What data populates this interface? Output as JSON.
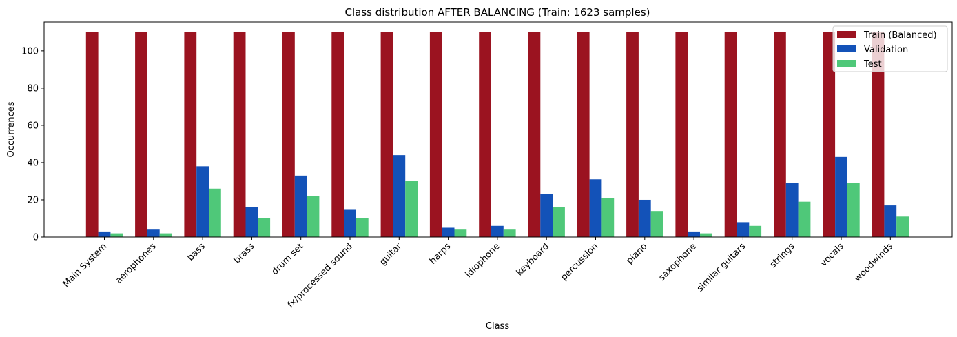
{
  "chart_data": {
    "type": "bar",
    "title": "Class distribution AFTER BALANCING (Train: 1623 samples)",
    "xlabel": "Class",
    "ylabel": "Occurrences",
    "ylim": [
      0,
      115.5
    ],
    "yticks": [
      0,
      20,
      40,
      60,
      80,
      100
    ],
    "grid": false,
    "legend_position": "top-right",
    "categories": [
      "Main System",
      "aerophones",
      "bass",
      "brass",
      "drum set",
      "fx/processed sound",
      "guitar",
      "harps",
      "idiophone",
      "keyboard",
      "percussion",
      "piano",
      "saxophone",
      "similar guitars",
      "strings",
      "vocals",
      "woodwinds"
    ],
    "series": [
      {
        "name": "Train (Balanced)",
        "color": "#9b1320",
        "values": [
          110,
          110,
          110,
          110,
          110,
          110,
          110,
          110,
          110,
          110,
          110,
          110,
          110,
          110,
          110,
          110,
          110
        ]
      },
      {
        "name": "Validation",
        "color": "#1352b8",
        "values": [
          3,
          4,
          38,
          16,
          33,
          15,
          44,
          5,
          6,
          23,
          31,
          20,
          3,
          8,
          29,
          43,
          17
        ]
      },
      {
        "name": "Test",
        "color": "#4fc879",
        "values": [
          2,
          2,
          26,
          10,
          22,
          10,
          30,
          4,
          4,
          16,
          21,
          14,
          2,
          6,
          19,
          29,
          11
        ]
      }
    ]
  }
}
